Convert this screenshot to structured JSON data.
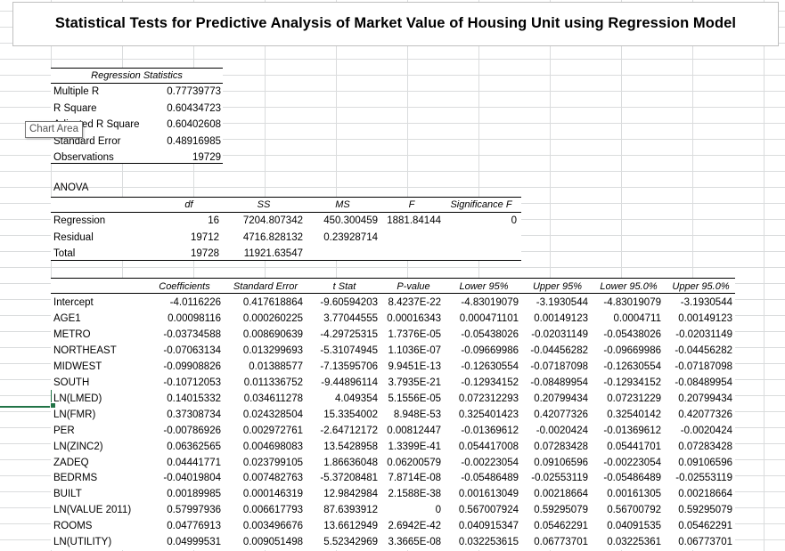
{
  "title": "Statistical Tests for Predictive Analysis of Market Value of Housing Unit using Regression Model",
  "tooltip": "Chart Area",
  "regression_statistics": {
    "header": "Regression Statistics",
    "rows": [
      {
        "label": "Multiple R",
        "value": "0.77739773"
      },
      {
        "label": "R Square",
        "value": "0.60434723"
      },
      {
        "label": "Adjusted R Square",
        "value": "0.60402608"
      },
      {
        "label": "Standard Error",
        "value": "0.48916985"
      },
      {
        "label": "Observations",
        "value": "19729"
      }
    ]
  },
  "anova": {
    "label": "ANOVA",
    "headers": [
      "df",
      "SS",
      "MS",
      "F",
      "Significance F"
    ],
    "rows": [
      {
        "label": "Regression",
        "df": "16",
        "ss": "7204.807342",
        "ms": "450.300459",
        "f": "1881.84144",
        "sig": "0"
      },
      {
        "label": "Residual",
        "df": "19712",
        "ss": "4716.828132",
        "ms": "0.23928714",
        "f": "",
        "sig": ""
      },
      {
        "label": "Total",
        "df": "19728",
        "ss": "11921.63547",
        "ms": "",
        "f": "",
        "sig": ""
      }
    ]
  },
  "coefficients": {
    "headers": [
      "Coefficients",
      "Standard Error",
      "t Stat",
      "P-value",
      "Lower 95%",
      "Upper 95%",
      "Lower 95.0%",
      "Upper 95.0%"
    ],
    "rows": [
      {
        "label": "Intercept",
        "values": [
          "-4.0116226",
          "0.417618864",
          "-9.60594203",
          "8.4237E-22",
          "-4.83019079",
          "-3.1930544",
          "-4.83019079",
          "-3.1930544"
        ]
      },
      {
        "label": "AGE1",
        "values": [
          "0.00098116",
          "0.000260225",
          "3.77044555",
          "0.00016343",
          "0.000471101",
          "0.00149123",
          "0.0004711",
          "0.00149123"
        ]
      },
      {
        "label": "METRO",
        "values": [
          "-0.03734588",
          "0.008690639",
          "-4.29725315",
          "1.7376E-05",
          "-0.05438026",
          "-0.02031149",
          "-0.05438026",
          "-0.02031149"
        ]
      },
      {
        "label": "NORTHEAST",
        "values": [
          "-0.07063134",
          "0.013299693",
          "-5.31074945",
          "1.1036E-07",
          "-0.09669986",
          "-0.04456282",
          "-0.09669986",
          "-0.04456282"
        ]
      },
      {
        "label": "MIDWEST",
        "values": [
          "-0.09908826",
          "0.01388577",
          "-7.13595706",
          "9.9451E-13",
          "-0.12630554",
          "-0.07187098",
          "-0.12630554",
          "-0.07187098"
        ]
      },
      {
        "label": "SOUTH",
        "values": [
          "-0.10712053",
          "0.011336752",
          "-9.44896114",
          "3.7935E-21",
          "-0.12934152",
          "-0.08489954",
          "-0.12934152",
          "-0.08489954"
        ]
      },
      {
        "label": "LN(LMED)",
        "values": [
          "0.14015332",
          "0.034611278",
          "4.049354",
          "5.1556E-05",
          "0.072312293",
          "0.20799434",
          "0.07231229",
          "0.20799434"
        ]
      },
      {
        "label": "LN(FMR)",
        "values": [
          "0.37308734",
          "0.024328504",
          "15.3354002",
          "8.948E-53",
          "0.325401423",
          "0.42077326",
          "0.32540142",
          "0.42077326"
        ]
      },
      {
        "label": "PER",
        "values": [
          "-0.00786926",
          "0.002972761",
          "-2.64712172",
          "0.00812447",
          "-0.01369612",
          "-0.0020424",
          "-0.01369612",
          "-0.0020424"
        ]
      },
      {
        "label": "LN(ZINC2)",
        "values": [
          "0.06362565",
          "0.004698083",
          "13.5428958",
          "1.3399E-41",
          "0.054417008",
          "0.07283428",
          "0.05441701",
          "0.07283428"
        ]
      },
      {
        "label": "ZADEQ",
        "values": [
          "0.04441771",
          "0.023799105",
          "1.86636048",
          "0.06200579",
          "-0.00223054",
          "0.09106596",
          "-0.00223054",
          "0.09106596"
        ]
      },
      {
        "label": "BEDRMS",
        "values": [
          "-0.04019804",
          "0.007482763",
          "-5.37208481",
          "7.8714E-08",
          "-0.05486489",
          "-0.02553119",
          "-0.05486489",
          "-0.02553119"
        ]
      },
      {
        "label": "BUILT",
        "values": [
          "0.00189985",
          "0.000146319",
          "12.9842984",
          "2.1588E-38",
          "0.001613049",
          "0.00218664",
          "0.00161305",
          "0.00218664"
        ]
      },
      {
        "label": "LN(VALUE 2011)",
        "values": [
          "0.57997936",
          "0.006617793",
          "87.6393912",
          "0",
          "0.567007924",
          "0.59295079",
          "0.56700792",
          "0.59295079"
        ]
      },
      {
        "label": "ROOMS",
        "values": [
          "0.04776913",
          "0.003496676",
          "13.6612949",
          "2.6942E-42",
          "0.040915347",
          "0.05462291",
          "0.04091535",
          "0.05462291"
        ]
      },
      {
        "label": "LN(UTILITY)",
        "values": [
          "0.04999531",
          "0.009051498",
          "5.52342969",
          "3.3665E-08",
          "0.032253615",
          "0.06773701",
          "0.03225361",
          "0.06773701"
        ]
      }
    ]
  }
}
